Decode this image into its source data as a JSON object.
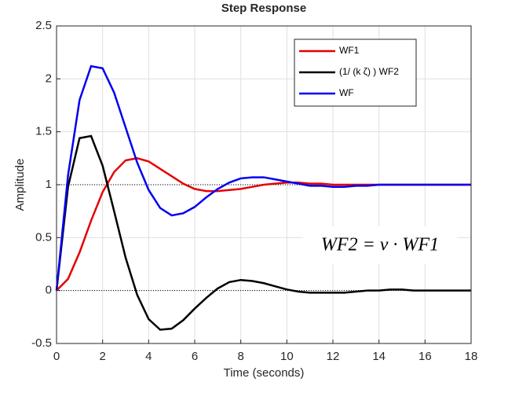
{
  "chart_data": {
    "type": "line",
    "title": "Step Response",
    "x_label": "Time (seconds)",
    "y_label": "Amplitude",
    "x": [
      0,
      0.5,
      1,
      1.5,
      2,
      2.5,
      3,
      3.5,
      4,
      4.5,
      5,
      5.5,
      6,
      6.5,
      7,
      7.5,
      8,
      8.5,
      9,
      9.5,
      10,
      10.5,
      11,
      11.5,
      12,
      12.5,
      13,
      13.5,
      14,
      14.5,
      15,
      15.5,
      16,
      16.5,
      17,
      17.5,
      18
    ],
    "series": [
      {
        "name": "WF1",
        "color": "#e60000",
        "values": [
          0,
          0.11,
          0.36,
          0.66,
          0.93,
          1.12,
          1.23,
          1.25,
          1.22,
          1.15,
          1.08,
          1.01,
          0.96,
          0.94,
          0.94,
          0.95,
          0.96,
          0.98,
          1.0,
          1.01,
          1.02,
          1.02,
          1.01,
          1.01,
          1.0,
          1.0,
          1.0,
          1.0,
          1.0,
          1.0,
          1.0,
          1.0,
          1.0,
          1.0,
          1.0,
          1.0,
          1.0
        ]
      },
      {
        "name": "(1/ (k ζ) ) WF2",
        "color": "#000000",
        "values": [
          0,
          0.98,
          1.44,
          1.46,
          1.18,
          0.75,
          0.31,
          -0.04,
          -0.27,
          -0.37,
          -0.36,
          -0.28,
          -0.17,
          -0.07,
          0.02,
          0.08,
          0.1,
          0.09,
          0.07,
          0.04,
          0.01,
          -0.01,
          -0.02,
          -0.02,
          -0.02,
          -0.02,
          -0.01,
          0,
          0,
          0.01,
          0.01,
          0,
          0,
          0,
          0,
          0,
          0
        ]
      },
      {
        "name": "WF",
        "color": "#0000f0",
        "values": [
          0,
          1.09,
          1.8,
          2.12,
          2.1,
          1.87,
          1.54,
          1.21,
          0.95,
          0.78,
          0.71,
          0.73,
          0.79,
          0.88,
          0.96,
          1.02,
          1.06,
          1.07,
          1.07,
          1.05,
          1.03,
          1.01,
          0.99,
          0.99,
          0.98,
          0.98,
          0.99,
          0.99,
          1.0,
          1.0,
          1.0,
          1.0,
          1.0,
          1.0,
          1.0,
          1.0,
          1.0
        ]
      }
    ],
    "xlim": [
      0,
      18
    ],
    "xticks": [
      0,
      2,
      4,
      6,
      8,
      10,
      12,
      14,
      16,
      18
    ],
    "ylim": [
      -0.5,
      2.5
    ],
    "yticks": [
      -0.5,
      0,
      0.5,
      1,
      1.5,
      2,
      2.5
    ],
    "reference_lines": [
      0,
      1
    ],
    "grid": true,
    "legend": "northeast",
    "annotation": "WF2 = v · WF1"
  }
}
